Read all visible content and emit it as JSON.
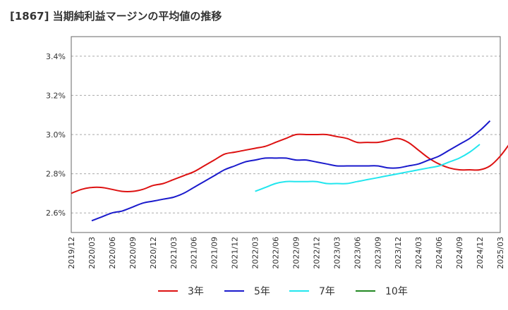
{
  "chart_data": {
    "type": "line",
    "title": "[1867]  当期純利益マージンの平均値の推移",
    "x_ticks": [
      "2019/12",
      "2020/03",
      "2020/06",
      "2020/09",
      "2020/12",
      "2021/03",
      "2021/06",
      "2021/09",
      "2021/12",
      "2022/03",
      "2022/06",
      "2022/09",
      "2022/12",
      "2023/03",
      "2023/06",
      "2023/09",
      "2023/12",
      "2024/03",
      "2024/06",
      "2024/09",
      "2024/12",
      "2025/03"
    ],
    "y_ticks": [
      {
        "value": 2.6,
        "label": "2.6%"
      },
      {
        "value": 2.8,
        "label": "2.8%"
      },
      {
        "value": 3.0,
        "label": "3.0%"
      },
      {
        "value": 3.2,
        "label": "3.2%"
      },
      {
        "value": 3.4,
        "label": "3.4%"
      }
    ],
    "ylim": [
      2.5,
      3.5
    ],
    "grid": "horizontal dashed",
    "legend_position": "bottom",
    "series": [
      {
        "name": "3年",
        "color": "#dd1111",
        "start": "2019/12",
        "values": [
          2.7,
          2.72,
          2.73,
          2.73,
          2.72,
          2.71,
          2.71,
          2.72,
          2.74,
          2.75,
          2.77,
          2.79,
          2.81,
          2.84,
          2.87,
          2.9,
          2.91,
          2.92,
          2.93,
          2.94,
          2.96,
          2.98,
          3.0,
          3.0,
          3.0,
          3.0,
          2.99,
          2.98,
          2.96,
          2.96,
          2.96,
          2.97,
          2.98,
          2.96,
          2.92,
          2.88,
          2.85,
          2.83,
          2.82,
          2.82,
          2.82,
          2.84,
          2.89,
          2.96,
          3.04
        ]
      },
      {
        "name": "5年",
        "color": "#1a1acc",
        "start": "2020/03",
        "values": [
          2.56,
          2.58,
          2.6,
          2.61,
          2.63,
          2.65,
          2.66,
          2.67,
          2.68,
          2.7,
          2.73,
          2.76,
          2.79,
          2.82,
          2.84,
          2.86,
          2.87,
          2.88,
          2.88,
          2.88,
          2.87,
          2.87,
          2.86,
          2.85,
          2.84,
          2.84,
          2.84,
          2.84,
          2.84,
          2.83,
          2.83,
          2.84,
          2.85,
          2.87,
          2.89,
          2.92,
          2.95,
          2.98,
          3.02,
          3.07
        ]
      },
      {
        "name": "7年",
        "color": "#22e6ee",
        "start": "2022/03",
        "values": [
          2.71,
          2.73,
          2.75,
          2.76,
          2.76,
          2.76,
          2.76,
          2.75,
          2.75,
          2.75,
          2.76,
          2.77,
          2.78,
          2.79,
          2.8,
          2.81,
          2.82,
          2.83,
          2.84,
          2.86,
          2.88,
          2.91,
          2.95
        ]
      },
      {
        "name": "10年",
        "color": "#228822",
        "start": "2019/12",
        "values": []
      }
    ]
  }
}
